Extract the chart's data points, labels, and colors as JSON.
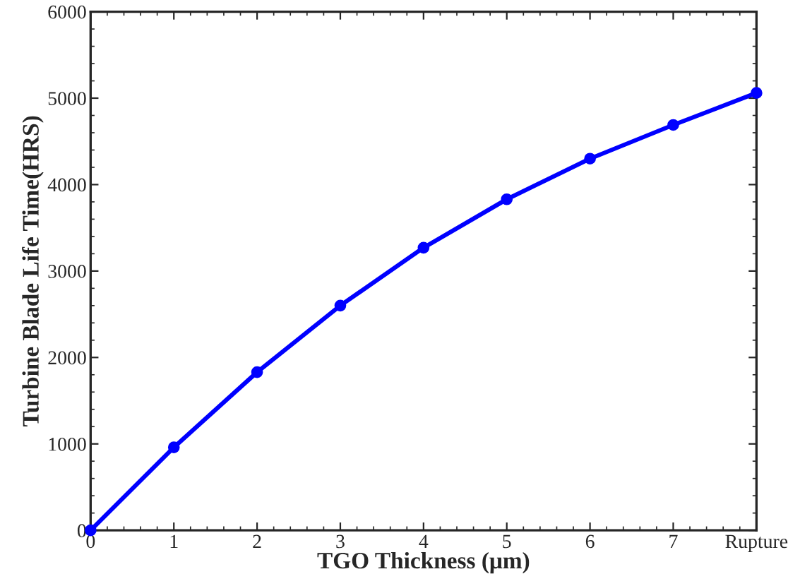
{
  "chart_data": {
    "type": "line",
    "xlabel": "TGO Thickness (μm)",
    "ylabel": "Turbine Blade Life Time(HRS)",
    "x": [
      0,
      1,
      2,
      3,
      4,
      5,
      6,
      7,
      8
    ],
    "series": [
      {
        "color": "#0000ff",
        "values": [
          0,
          960,
          1830,
          2600,
          3270,
          3830,
          4300,
          4690,
          5060
        ]
      }
    ],
    "xlim": [
      0,
      8
    ],
    "xticks": [
      0,
      1,
      2,
      3,
      4,
      5,
      6,
      7,
      {
        "value": 8,
        "label": "Rupture"
      }
    ],
    "ylim": [
      0,
      6000
    ],
    "yticks": [
      0,
      1000,
      2000,
      3000,
      4000,
      5000,
      6000
    ],
    "marker": "circle",
    "line_style": "solid",
    "grid": false
  }
}
